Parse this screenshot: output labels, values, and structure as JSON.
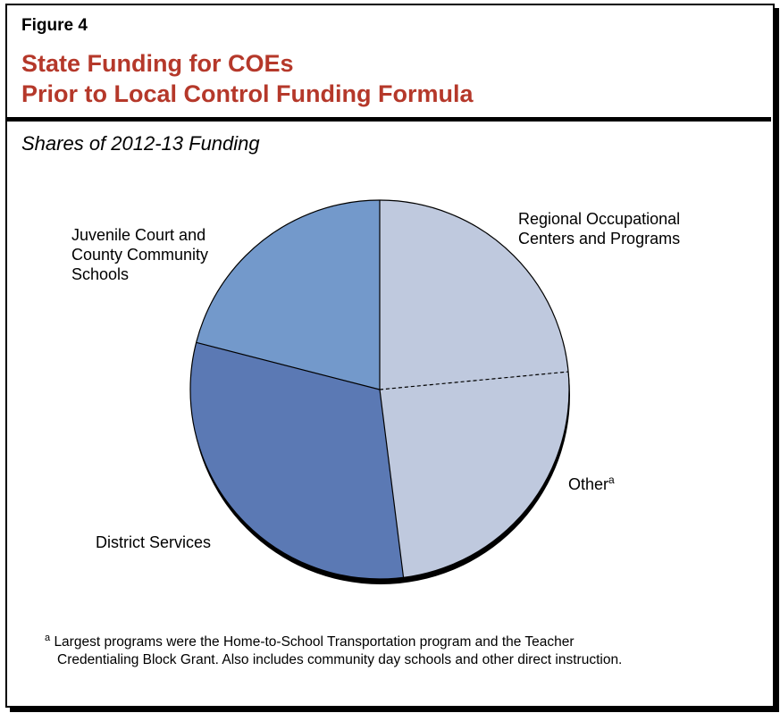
{
  "figure_label": "Figure 4",
  "title_line1": "State Funding for COEs",
  "title_line2": "Prior to Local Control Funding Formula",
  "subtitle": "Shares of 2012-13 Funding",
  "chart_data": {
    "type": "pie",
    "categories": [
      "Regional Occupational Centers and Programs",
      "Other",
      "District Services",
      "Juvenile Court and County Community Schools"
    ],
    "values": [
      23.5,
      24.5,
      31,
      21
    ],
    "colors": [
      "#bfc9de",
      "#bfc9de",
      "#5b79b4",
      "#7399cb"
    ],
    "labels": {
      "roc_line1": "Regional Occupational",
      "roc_line2": "Centers and Programs",
      "other": "Other",
      "other_sup": "a",
      "district": "District Services",
      "juvenile_line1": "Juvenile Court and",
      "juvenile_line2": "County Community",
      "juvenile_line3": "Schools"
    }
  },
  "footnote": {
    "marker": "a",
    "line1": "Largest programs were the Home-to-School Transportation program and the Teacher",
    "line2": "Credentialing Block Grant. Also includes community day schools and other direct instruction."
  }
}
